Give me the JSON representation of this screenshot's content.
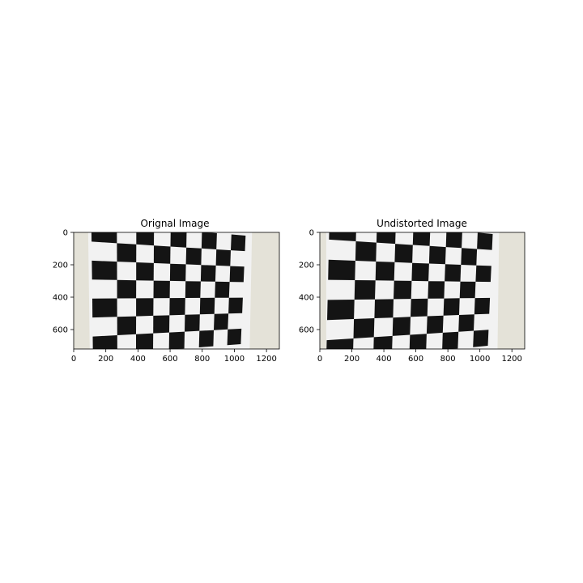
{
  "figure": {
    "panels": [
      {
        "title": "Orignal Image",
        "image_description_name": "distorted-chessboard-photo",
        "x_ticks": [
          "0",
          "200",
          "400",
          "600",
          "800",
          "1000",
          "1200"
        ],
        "y_ticks": [
          "0",
          "200",
          "400",
          "600"
        ],
        "xlim": [
          0,
          1280
        ],
        "ylim": [
          720,
          0
        ],
        "distorted": true
      },
      {
        "title": "Undistorted Image",
        "image_description_name": "undistorted-chessboard-photo",
        "x_ticks": [
          "0",
          "200",
          "400",
          "600",
          "800",
          "1000",
          "1200"
        ],
        "y_ticks": [
          "0",
          "200",
          "400",
          "600"
        ],
        "xlim": [
          0,
          1280
        ],
        "ylim": [
          720,
          0
        ],
        "distorted": false
      }
    ],
    "colors": {
      "background_wall": "#e4e2d8",
      "paper": "#f2f2f2",
      "square_dark": "#141414"
    }
  }
}
